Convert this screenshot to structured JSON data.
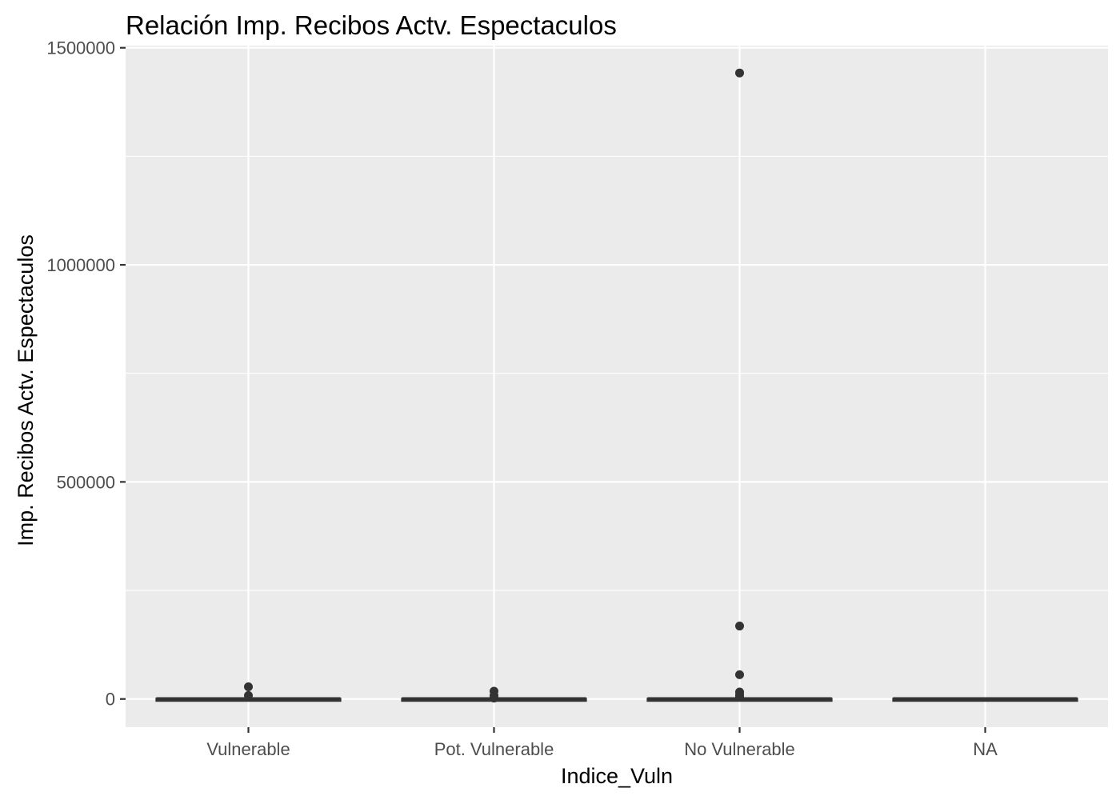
{
  "chart_data": {
    "type": "boxplot",
    "title": "Relación  Imp. Recibos Actv. Espectaculos",
    "xlabel": "Indice_Vuln",
    "ylabel": "Imp. Recibos Actv. Espectaculos",
    "ylim": [
      -65000,
      1505000
    ],
    "y_ticks": [
      0,
      500000,
      1000000,
      1500000
    ],
    "y_tick_labels": [
      "0",
      "500000",
      "1000000",
      "1500000"
    ],
    "grid": true,
    "panel_background": "#ebebeb",
    "grid_color": "#ffffff",
    "box_color": "#333333",
    "categories": [
      "Vulnerable",
      "Pot. Vulnerable",
      "No Vulnerable",
      "NA"
    ],
    "boxes": [
      {
        "category": "Vulnerable",
        "q1": 0,
        "median": 0,
        "q3": 0,
        "whisker_low": 0,
        "whisker_high": 0,
        "outliers": [
          28000,
          8000
        ]
      },
      {
        "category": "Pot. Vulnerable",
        "q1": 0,
        "median": 0,
        "q3": 0,
        "whisker_low": 0,
        "whisker_high": 0,
        "outliers": [
          18000,
          8000,
          2000
        ]
      },
      {
        "category": "No Vulnerable",
        "q1": 0,
        "median": 0,
        "q3": 0,
        "whisker_low": 0,
        "whisker_high": 0,
        "outliers": [
          1442000,
          168000,
          56000,
          16000,
          10000,
          5000
        ]
      },
      {
        "category": "NA",
        "q1": 0,
        "median": 0,
        "q3": 0,
        "whisker_low": 0,
        "whisker_high": 0,
        "outliers": []
      }
    ]
  }
}
